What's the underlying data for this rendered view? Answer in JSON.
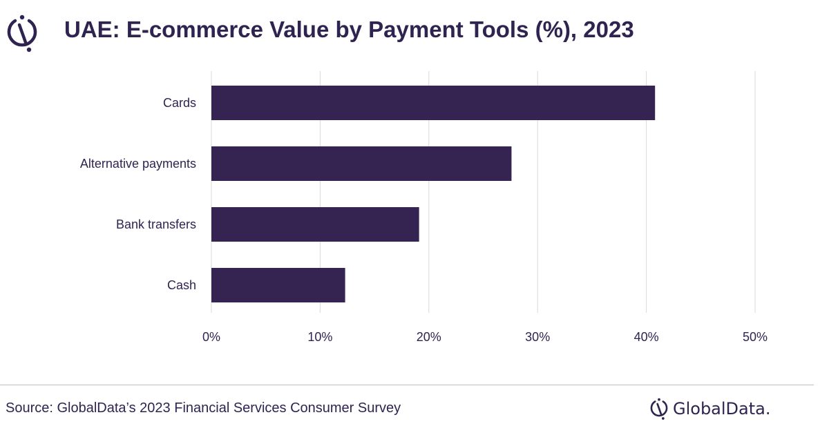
{
  "header": {
    "title": "UAE: E-commerce Value by Payment Tools (%), 2023",
    "logo_icon": "globaldata-logo-icon"
  },
  "footer": {
    "source": "Source: GlobalData’s 2023 Financial Services Consumer Survey",
    "brand_name": "GlobalData.",
    "brand_icon": "globaldata-logo-icon"
  },
  "colors": {
    "bar": "#352452",
    "text": "#2f2350",
    "grid": "#d9d9d9"
  },
  "chart_data": {
    "type": "bar",
    "orientation": "horizontal",
    "title": "UAE: E-commerce Value by Payment Tools (%), 2023",
    "categories": [
      "Cards",
      "Alternative payments",
      "Bank transfers",
      "Cash"
    ],
    "values": [
      40.8,
      27.6,
      19.1,
      12.3
    ],
    "unit": "%",
    "xlim": [
      0,
      50
    ],
    "xticks": [
      0,
      10,
      20,
      30,
      40,
      50
    ],
    "xtick_labels": [
      "0%",
      "10%",
      "20%",
      "30%",
      "40%",
      "50%"
    ],
    "grid": true,
    "legend": "none"
  }
}
